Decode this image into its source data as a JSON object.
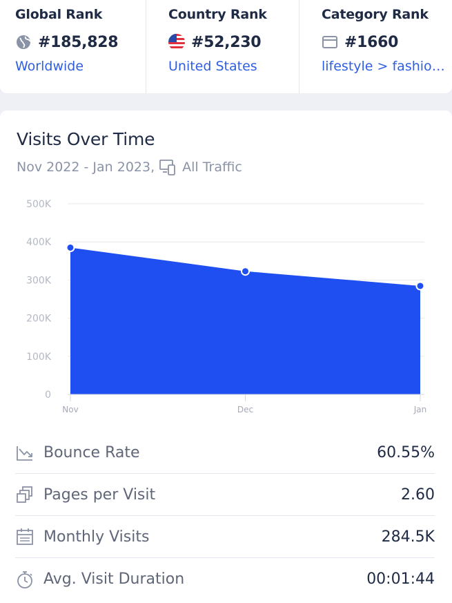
{
  "ranks": [
    {
      "title": "Global Rank",
      "value": "#185,828",
      "link": "Worldwide",
      "icon": "globe-icon"
    },
    {
      "title": "Country Rank",
      "value": "#52,230",
      "link": "United States",
      "icon": "us-flag-icon"
    },
    {
      "title": "Category Rank",
      "value": "#1660",
      "link": "lifestyle > fashion…",
      "icon": "category-icon"
    }
  ],
  "visits": {
    "title": "Visits Over Time",
    "date_range": "Nov 2022 - Jan 2023,",
    "traffic": "All Traffic"
  },
  "chart_data": {
    "type": "area",
    "categories": [
      "Nov",
      "Dec",
      "Jan"
    ],
    "values": [
      385000,
      323000,
      284500
    ],
    "yticks": [
      "0",
      "100K",
      "200K",
      "300K",
      "400K",
      "500K"
    ],
    "ylim": [
      0,
      500000
    ],
    "color": "#1f4ff0",
    "title": "Visits Over Time"
  },
  "metrics": [
    {
      "label": "Bounce Rate",
      "value": "60.55%",
      "icon": "bounce-rate-icon"
    },
    {
      "label": "Pages per Visit",
      "value": "2.60",
      "icon": "pages-icon"
    },
    {
      "label": "Monthly Visits",
      "value": "284.5K",
      "icon": "calendar-icon"
    },
    {
      "label": "Avg. Visit Duration",
      "value": "00:01:44",
      "icon": "stopwatch-icon"
    }
  ]
}
